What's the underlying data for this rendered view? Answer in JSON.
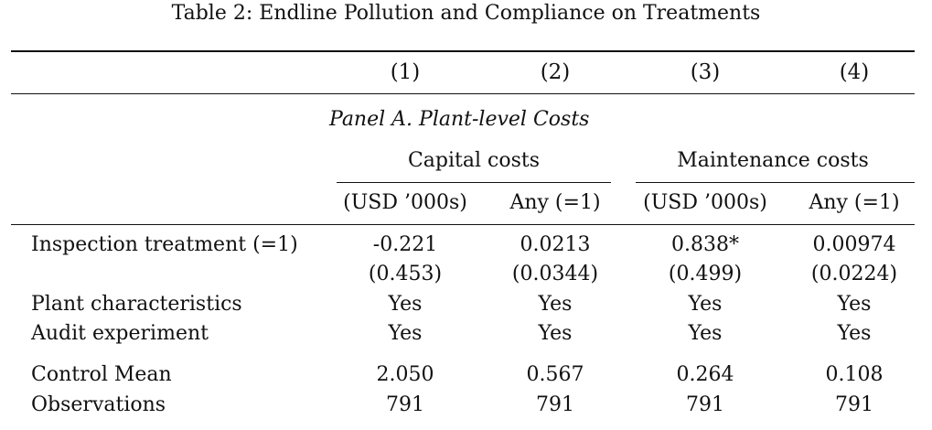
{
  "caption": "Table 2: Endline Pollution and Compliance on Treatments",
  "columns": [
    "(1)",
    "(2)",
    "(3)",
    "(4)"
  ],
  "panel_title": "Panel A. Plant-level Costs",
  "groups": [
    "Capital costs",
    "Maintenance costs"
  ],
  "subheaders": [
    "(USD ’000s)",
    "Any (=1)",
    "(USD ’000s)",
    "Any (=1)"
  ],
  "rows": [
    {
      "label": "Inspection treatment (=1)",
      "values": [
        "-0.221",
        "0.0213",
        "0.838*",
        "0.00974"
      ]
    },
    {
      "label": "",
      "values": [
        "(0.453)",
        "(0.0344)",
        "(0.499)",
        "(0.0224)"
      ]
    },
    {
      "label": "Plant characteristics",
      "values": [
        "Yes",
        "Yes",
        "Yes",
        "Yes"
      ]
    },
    {
      "label": "Audit experiment",
      "values": [
        "Yes",
        "Yes",
        "Yes",
        "Yes"
      ]
    },
    {
      "label": "Control Mean",
      "values": [
        "2.050",
        "0.567",
        "0.264",
        "0.108"
      ]
    },
    {
      "label": "Observations",
      "values": [
        "791",
        "791",
        "791",
        "791"
      ]
    }
  ]
}
